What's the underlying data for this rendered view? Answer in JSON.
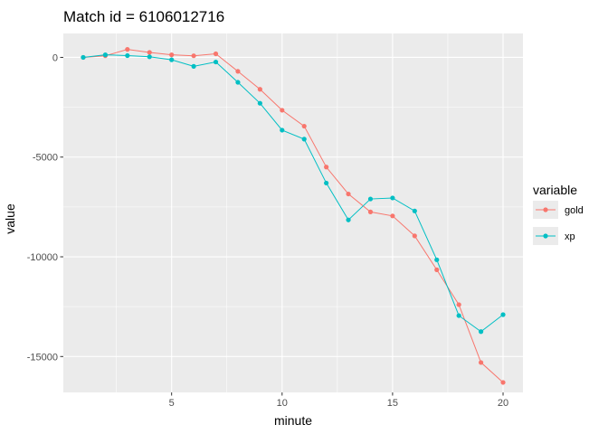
{
  "chart_data": {
    "type": "line",
    "title": "Match id =  6106012716",
    "xlabel": "minute",
    "ylabel": "value",
    "xlim": [
      0.1,
      20.9
    ],
    "ylim": [
      -16800,
      1200
    ],
    "x_ticks": [
      5,
      10,
      15,
      20
    ],
    "x_tick_labels": [
      "5",
      "10",
      "15",
      "20"
    ],
    "y_ticks": [
      0,
      -5000,
      -10000,
      -15000
    ],
    "y_tick_labels": [
      "0",
      "-5000",
      "-10000",
      "-15000"
    ],
    "grid": true,
    "legend_title": "variable",
    "legend_position": "right",
    "x": [
      1,
      2,
      3,
      4,
      5,
      6,
      7,
      8,
      9,
      10,
      11,
      12,
      13,
      14,
      15,
      16,
      17,
      18,
      19,
      20
    ],
    "series": [
      {
        "name": "gold",
        "color": "#F8766D",
        "values": [
          0,
          80,
          400,
          250,
          130,
          80,
          180,
          -700,
          -1600,
          -2650,
          -3450,
          -5500,
          -6850,
          -7750,
          -7950,
          -8950,
          -10650,
          -12400,
          -15300,
          -16300
        ]
      },
      {
        "name": "xp",
        "color": "#00BFC4",
        "values": [
          0,
          130,
          90,
          30,
          -120,
          -450,
          -230,
          -1250,
          -2300,
          -3650,
          -4100,
          -6300,
          -8150,
          -7100,
          -7050,
          -7700,
          -10150,
          -12950,
          -13750,
          -12900
        ]
      }
    ]
  }
}
